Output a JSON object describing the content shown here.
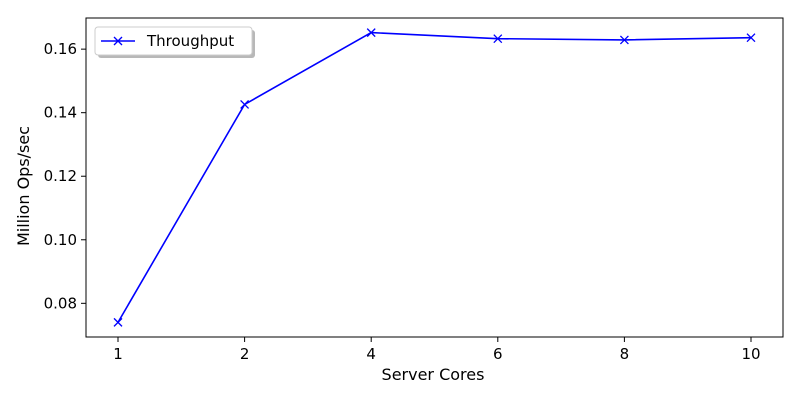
{
  "chart_data": {
    "type": "line",
    "title": "",
    "xlabel": "Server Cores",
    "ylabel": "Million Ops/sec",
    "categories": [
      "1",
      "2",
      "4",
      "6",
      "8",
      "10"
    ],
    "series": [
      {
        "name": "Throughput",
        "color": "#0000ff",
        "marker": "x",
        "values": [
          0.074,
          0.1426,
          0.1652,
          0.1633,
          0.1629,
          0.1636
        ]
      }
    ],
    "yticks": [
      0.08,
      0.1,
      0.12,
      0.14,
      0.16
    ],
    "ytick_labels": [
      "0.08",
      "0.10",
      "0.12",
      "0.14",
      "0.16"
    ],
    "ylim": [
      0.0694,
      0.1698
    ],
    "grid": false,
    "legend_position": "upper-left"
  }
}
